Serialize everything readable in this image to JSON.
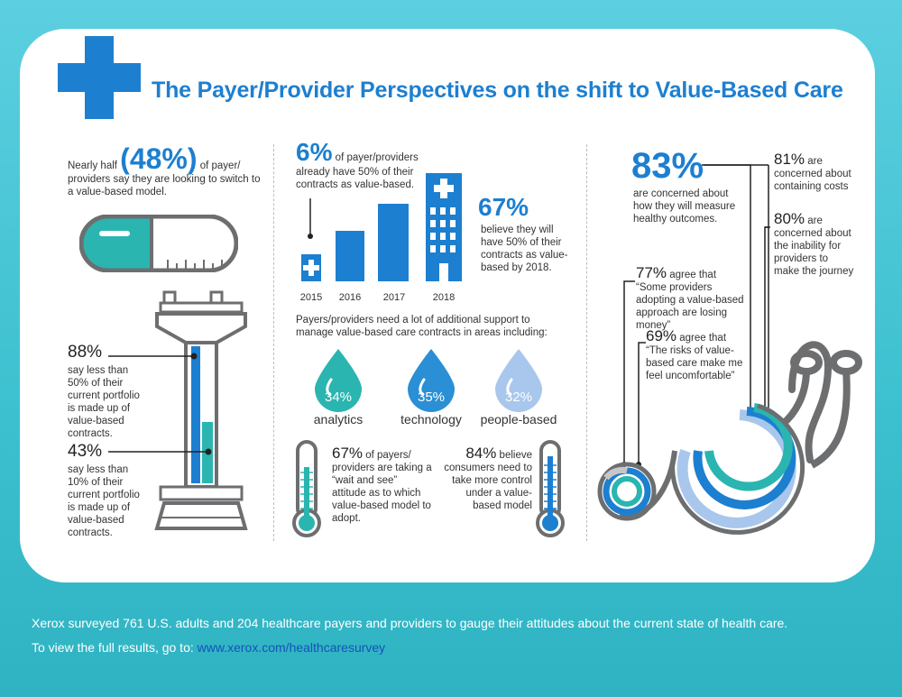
{
  "title": "The Payer/Provider Perspectives on the shift to Value-Based Care",
  "left": {
    "nearly_prefix": "Nearly half",
    "nearly_pct": "(48%)",
    "nearly_suffix_1": "of payer/",
    "nearly_rest": "providers say they are looking to switch to a value-based model.",
    "stat88_pct": "88%",
    "stat88_text": "say less than 50% of their current portfolio is made up of value-based contracts.",
    "stat43_pct": "43%",
    "stat43_text": "say less than 10% of their current portfolio is made up of value-based contracts."
  },
  "middle": {
    "six_pct": "6%",
    "six_text_1": "of payer/providers",
    "six_text_rest": "already have 50% of their contracts as value-based.",
    "sixty7_pct": "67%",
    "sixty7_text": "believe they will have 50% of their contracts as value-based by 2018.",
    "years": [
      "2015",
      "2016",
      "2017",
      "2018"
    ],
    "support_text": "Payers/providers need a lot of additional support to manage value-based care contracts in areas including:",
    "drops": [
      {
        "pct": "34%",
        "label": "analytics",
        "color": "#2ab5b0"
      },
      {
        "pct": "35%",
        "label": "technology",
        "color": "#2a8fd4"
      },
      {
        "pct": "32%",
        "label": "people-based",
        "color": "#a9c7ec"
      }
    ],
    "wait_pct": "67%",
    "wait_text_1": "of payers/",
    "wait_text_rest": "providers are taking a “wait and see” attitude as to which value-based model to adopt.",
    "c84_pct": "84%",
    "c84_text_1": "believe",
    "c84_text_rest": "consumers need to take more control under a value-based model"
  },
  "right": {
    "s83_pct": "83%",
    "s83_text": "are concerned about how they will measure healthy outcomes.",
    "s81_pct": "81%",
    "s81_text_1": "are",
    "s81_text_rest": "concerned about containing costs",
    "s80_pct": "80%",
    "s80_text_1": "are",
    "s80_text_rest": "concerned about the inability for providers to make the journey",
    "s77_pct": "77%",
    "s77_text_1": "agree that",
    "s77_text_rest": "“Some providers adopting a value-based approach are losing money”",
    "s69_pct": "69%",
    "s69_text_1": "agree that",
    "s69_text_rest": "“The risks of value-based care make me feel uncomfortable”"
  },
  "footer": {
    "line1": "Xerox surveyed 761 U.S. adults and 204 healthcare payers and providers to gauge their attitudes about the current state of health care.",
    "line2_prefix": "To view the full results, go to:",
    "link": "www.xerox.com/healthcaresurvey"
  },
  "colors": {
    "brand_blue": "#1d7fd0",
    "teal": "#2ab5b0",
    "light_blue": "#a9c7ec",
    "gray": "#6d6e70"
  }
}
